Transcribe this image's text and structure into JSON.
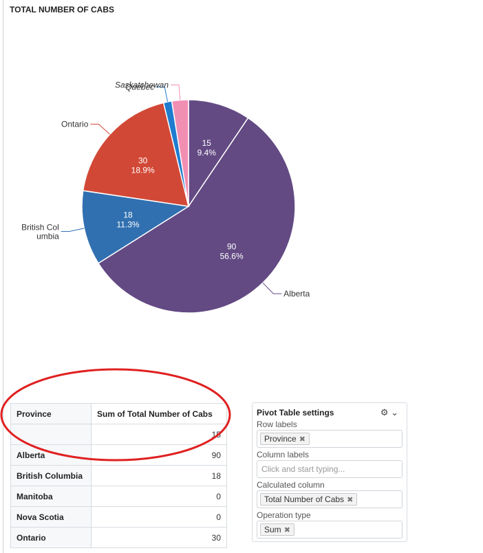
{
  "title": "TOTAL NUMBER OF CABS",
  "chart_data": {
    "type": "pie",
    "title": "",
    "slices": [
      {
        "label": "",
        "value": 15,
        "percent": "9.4%",
        "color": "#634a83"
      },
      {
        "label": "Alberta",
        "value": 90,
        "percent": "56.6%",
        "color": "#634a83"
      },
      {
        "label": "British Col umbia",
        "value": 18,
        "percent": "11.3%",
        "color": "#3170b0"
      },
      {
        "label": "Ontario",
        "value": 30,
        "percent": "18.9%",
        "color": "#d24836"
      },
      {
        "label": "Quebec",
        "value": 2,
        "percent": "",
        "color": "#1f7ccf"
      },
      {
        "label": "Saskatchewan",
        "value": 4,
        "percent": "",
        "color": "#f18fb3"
      }
    ]
  },
  "pivot_table": {
    "headers": [
      "Province",
      "Sum of Total Number of Cabs"
    ],
    "rows": [
      {
        "province": "",
        "sum": "15"
      },
      {
        "province": "Alberta",
        "sum": "90"
      },
      {
        "province": "British Columbia",
        "sum": "18"
      },
      {
        "province": "Manitoba",
        "sum": "0"
      },
      {
        "province": "Nova Scotia",
        "sum": "0"
      },
      {
        "province": "Ontario",
        "sum": "30"
      }
    ]
  },
  "settings": {
    "title": "Pivot Table settings",
    "gear_icon": "gear-icon",
    "row_labels_label": "Row labels",
    "row_labels_chip": "Province",
    "column_labels_label": "Column labels",
    "column_labels_placeholder": "Click and start typing...",
    "calculated_column_label": "Calculated column",
    "calculated_column_chip": "Total Number of Cabs",
    "operation_type_label": "Operation type",
    "operation_type_chip": "Sum"
  },
  "annotation_color": "#e02020"
}
